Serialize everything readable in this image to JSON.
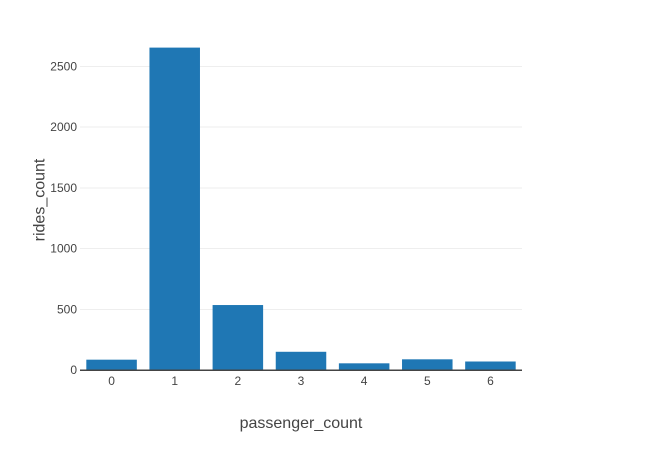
{
  "chart_data": {
    "type": "bar",
    "categories": [
      "0",
      "1",
      "2",
      "3",
      "4",
      "5",
      "6"
    ],
    "values": [
      85,
      2655,
      535,
      150,
      55,
      88,
      70
    ],
    "xlabel": "passenger_count",
    "ylabel": "rides_count",
    "ylim": [
      0,
      2800
    ],
    "yticks": [
      0,
      500,
      1000,
      1500,
      2000,
      2500
    ],
    "ytick_labels": [
      "0",
      "500",
      "1000",
      "1500",
      "2000",
      "2500"
    ],
    "bar_color": "#1f77b4",
    "grid": true,
    "legend": "none"
  }
}
